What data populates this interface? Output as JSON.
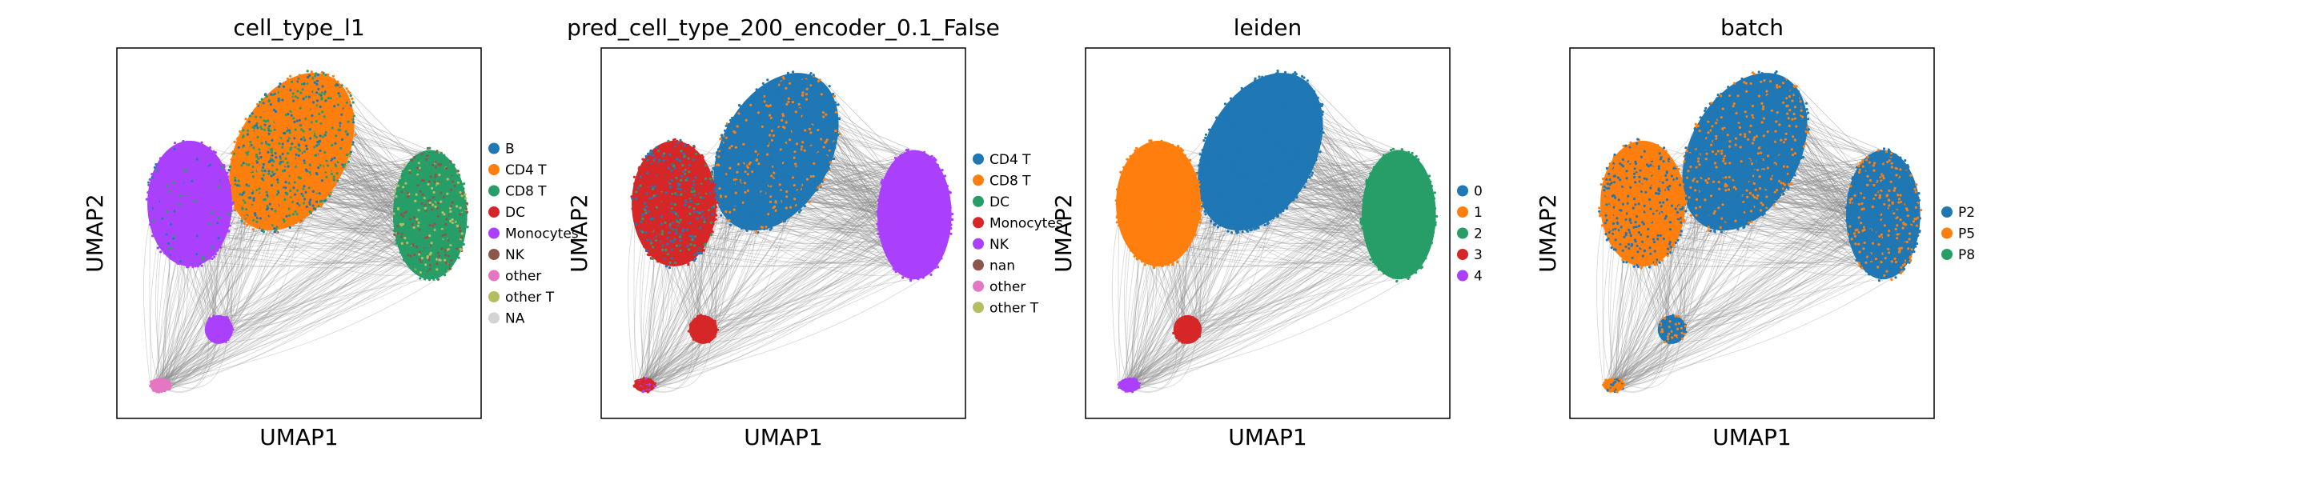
{
  "chart_data": [
    {
      "type": "scatter",
      "title": "cell_type_l1",
      "xlabel": "UMAP1",
      "ylabel": "UMAP2",
      "legend_placement": "right-outside",
      "grid": false,
      "legend": [
        {
          "label": "B",
          "color": "#1f77b4"
        },
        {
          "label": "CD4 T",
          "color": "#ff7f0e"
        },
        {
          "label": "CD8 T",
          "color": "#279e68"
        },
        {
          "label": "DC",
          "color": "#d62728"
        },
        {
          "label": "Monocytes",
          "color": "#aa40fc"
        },
        {
          "label": "NK",
          "color": "#8c564b"
        },
        {
          "label": "other",
          "color": "#e377c2"
        },
        {
          "label": "other T",
          "color": "#b5bd61"
        },
        {
          "label": "NA",
          "color": "#d3d3d3"
        }
      ],
      "clusters": [
        {
          "cx": 0.48,
          "cy": 0.72,
          "mix": [
            [
              "#1f77b4",
              0.2
            ],
            [
              "#ff7f0e",
              0.55
            ],
            [
              "#279e68",
              0.25
            ]
          ]
        },
        {
          "cx": 0.2,
          "cy": 0.58,
          "mix": [
            [
              "#aa40fc",
              0.92
            ],
            [
              "#279e68",
              0.04
            ],
            [
              "#1f77b4",
              0.04
            ]
          ]
        },
        {
          "cx": 0.86,
          "cy": 0.55,
          "mix": [
            [
              "#279e68",
              0.6
            ],
            [
              "#8c564b",
              0.25
            ],
            [
              "#b5bd61",
              0.15
            ]
          ]
        },
        {
          "cx": 0.28,
          "cy": 0.24,
          "mix": [
            [
              "#aa40fc",
              1.0
            ]
          ]
        },
        {
          "cx": 0.12,
          "cy": 0.09,
          "mix": [
            [
              "#e377c2",
              1.0
            ]
          ]
        }
      ]
    },
    {
      "type": "scatter",
      "title": "pred_cell_type_200_encoder_0.1_False",
      "xlabel": "UMAP1",
      "ylabel": "UMAP2",
      "legend_placement": "right-outside",
      "grid": false,
      "legend": [
        {
          "label": "CD4 T",
          "color": "#1f77b4"
        },
        {
          "label": "CD8 T",
          "color": "#ff7f0e"
        },
        {
          "label": "DC",
          "color": "#279e68"
        },
        {
          "label": "Monocytes",
          "color": "#d62728"
        },
        {
          "label": "NK",
          "color": "#aa40fc"
        },
        {
          "label": "nan",
          "color": "#8c564b"
        },
        {
          "label": "other",
          "color": "#e377c2"
        },
        {
          "label": "other T",
          "color": "#b5bd61"
        }
      ],
      "clusters": [
        {
          "cx": 0.48,
          "cy": 0.72,
          "mix": [
            [
              "#1f77b4",
              0.8
            ],
            [
              "#ff7f0e",
              0.2
            ]
          ]
        },
        {
          "cx": 0.2,
          "cy": 0.58,
          "mix": [
            [
              "#d62728",
              0.55
            ],
            [
              "#1f77b4",
              0.3
            ],
            [
              "#279e68",
              0.15
            ]
          ]
        },
        {
          "cx": 0.86,
          "cy": 0.55,
          "mix": [
            [
              "#aa40fc",
              1.0
            ]
          ]
        },
        {
          "cx": 0.28,
          "cy": 0.24,
          "mix": [
            [
              "#d62728",
              1.0
            ]
          ]
        },
        {
          "cx": 0.12,
          "cy": 0.09,
          "mix": [
            [
              "#d62728",
              0.7
            ],
            [
              "#aa40fc",
              0.3
            ]
          ]
        }
      ]
    },
    {
      "type": "scatter",
      "title": "leiden",
      "xlabel": "UMAP1",
      "ylabel": "UMAP2",
      "legend_placement": "right-outside",
      "grid": false,
      "legend": [
        {
          "label": "0",
          "color": "#1f77b4"
        },
        {
          "label": "1",
          "color": "#ff7f0e"
        },
        {
          "label": "2",
          "color": "#279e68"
        },
        {
          "label": "3",
          "color": "#d62728"
        },
        {
          "label": "4",
          "color": "#aa40fc"
        }
      ],
      "clusters": [
        {
          "cx": 0.48,
          "cy": 0.72,
          "mix": [
            [
              "#1f77b4",
              1.0
            ]
          ]
        },
        {
          "cx": 0.2,
          "cy": 0.58,
          "mix": [
            [
              "#ff7f0e",
              1.0
            ]
          ]
        },
        {
          "cx": 0.86,
          "cy": 0.55,
          "mix": [
            [
              "#279e68",
              1.0
            ]
          ]
        },
        {
          "cx": 0.28,
          "cy": 0.24,
          "mix": [
            [
              "#d62728",
              1.0
            ]
          ]
        },
        {
          "cx": 0.12,
          "cy": 0.09,
          "mix": [
            [
              "#aa40fc",
              1.0
            ]
          ]
        }
      ]
    },
    {
      "type": "scatter",
      "title": "batch",
      "xlabel": "UMAP1",
      "ylabel": "UMAP2",
      "legend_placement": "right-outside",
      "grid": false,
      "legend": [
        {
          "label": "P2",
          "color": "#1f77b4"
        },
        {
          "label": "P5",
          "color": "#ff7f0e"
        },
        {
          "label": "P8",
          "color": "#279e68"
        }
      ],
      "clusters": [
        {
          "cx": 0.48,
          "cy": 0.72,
          "mix": [
            [
              "#1f77b4",
              0.75
            ],
            [
              "#ff7f0e",
              0.25
            ]
          ]
        },
        {
          "cx": 0.2,
          "cy": 0.58,
          "mix": [
            [
              "#ff7f0e",
              0.6
            ],
            [
              "#1f77b4",
              0.4
            ]
          ]
        },
        {
          "cx": 0.86,
          "cy": 0.55,
          "mix": [
            [
              "#1f77b4",
              0.6
            ],
            [
              "#ff7f0e",
              0.4
            ]
          ]
        },
        {
          "cx": 0.28,
          "cy": 0.24,
          "mix": [
            [
              "#1f77b4",
              0.6
            ],
            [
              "#ff7f0e",
              0.4
            ]
          ]
        },
        {
          "cx": 0.12,
          "cy": 0.09,
          "mix": [
            [
              "#ff7f0e",
              0.7
            ],
            [
              "#1f77b4",
              0.3
            ]
          ]
        }
      ]
    }
  ]
}
